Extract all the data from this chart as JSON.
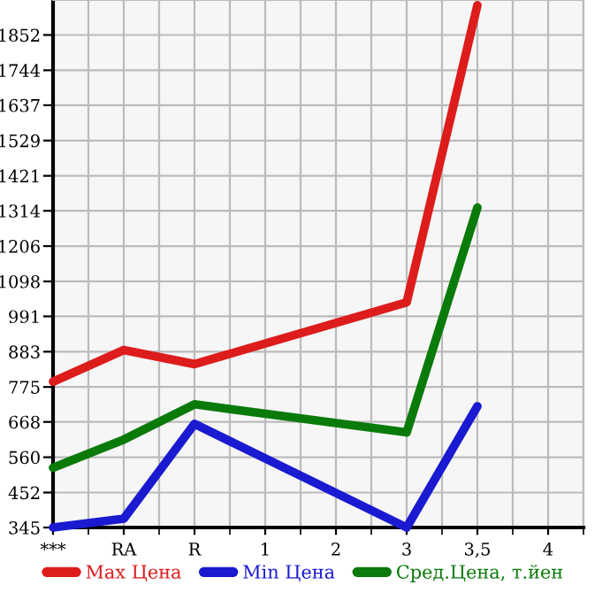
{
  "chart_data": {
    "type": "line",
    "categories": [
      "***",
      "RA",
      "R",
      "1",
      "2",
      "3",
      "3,5",
      "4"
    ],
    "series": [
      {
        "name": "Max Цена",
        "color": "#dd1c1c",
        "values": [
          791,
          888,
          845,
          null,
          null,
          1034,
          1943,
          null
        ]
      },
      {
        "name": "Min Цена",
        "color": "#1a1ad0",
        "values": [
          345,
          372,
          662,
          null,
          null,
          345,
          716,
          null
        ]
      },
      {
        "name": "Сред.Цена, т.йен",
        "color": "#0a7a0a",
        "values": [
          528,
          614,
          722,
          null,
          null,
          636,
          1324,
          null
        ]
      }
    ],
    "ylim": [
      345,
      1959
    ],
    "yticks": [
      345,
      452,
      560,
      668,
      775,
      883,
      991,
      1098,
      1206,
      1314,
      1421,
      1529,
      1637,
      1744,
      1852
    ],
    "grid": true,
    "legend": "bottom",
    "marker": "none",
    "line_style": "solid"
  }
}
